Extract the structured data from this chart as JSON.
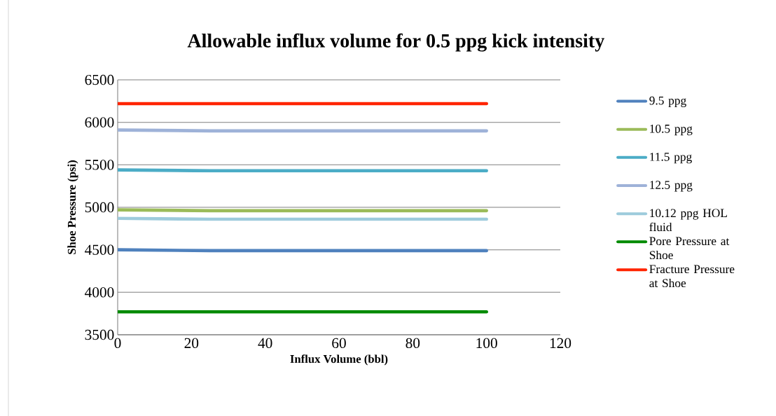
{
  "chart_data": {
    "type": "line",
    "title": "Allowable influx volume for 0.5 ppg kick intensity",
    "xlabel": "Influx Volume (bbl)",
    "ylabel": "Shoe Pressure (psi)",
    "x": [
      0,
      25,
      50,
      75,
      100
    ],
    "series": [
      {
        "name": "9.5 ppg",
        "color": "#4f81bd",
        "values": [
          4500,
          4490,
          4490,
          4490,
          4490
        ]
      },
      {
        "name": "10.5 ppg",
        "color": "#9bbb59",
        "values": [
          4970,
          4960,
          4960,
          4960,
          4960
        ]
      },
      {
        "name": "11.5 ppg",
        "color": "#4bacc6",
        "values": [
          5440,
          5430,
          5430,
          5430,
          5430
        ]
      },
      {
        "name": "12.5 ppg",
        "color": "#9eb2d8",
        "values": [
          5910,
          5900,
          5900,
          5900,
          5900
        ]
      },
      {
        "name": "10.12 ppg HOL fluid",
        "color": "#9dcbdc",
        "values": [
          4870,
          4860,
          4860,
          4860,
          4860
        ]
      },
      {
        "name": "Pore Pressure at Shoe",
        "color": "#008a00",
        "values": [
          3770,
          3770,
          3770,
          3770,
          3770
        ]
      },
      {
        "name": "Fracture Pressure at Shoe",
        "color": "#ff2400",
        "values": [
          6220,
          6220,
          6220,
          6220,
          6220
        ]
      }
    ],
    "xlim": [
      0,
      120
    ],
    "xticks": [
      0,
      20,
      40,
      60,
      80,
      100,
      120
    ],
    "ylim": [
      3500,
      6500
    ],
    "yticks": [
      3500,
      4000,
      4500,
      5000,
      5500,
      6000,
      6500
    ],
    "grid": "y",
    "legend": "right",
    "marker": "none",
    "line_style": "solid"
  }
}
